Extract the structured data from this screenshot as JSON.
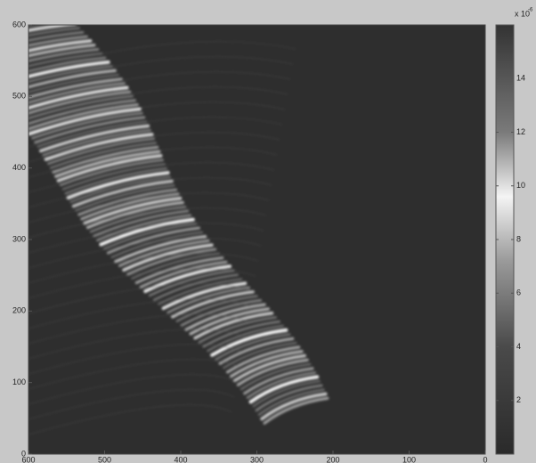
{
  "chart_data": {
    "type": "image",
    "xlim": [
      600,
      0
    ],
    "xticks": [
      600,
      500,
      400,
      300,
      200,
      100,
      0
    ],
    "ylim": [
      0,
      600
    ],
    "yticks": [
      0,
      100,
      200,
      300,
      400,
      500,
      600
    ],
    "colorbar": {
      "lim": [
        0,
        16
      ],
      "ticks": [
        2,
        4,
        6,
        8,
        10,
        12,
        14
      ],
      "scale_label": "x 10",
      "scale_exponent": "-6"
    }
  }
}
